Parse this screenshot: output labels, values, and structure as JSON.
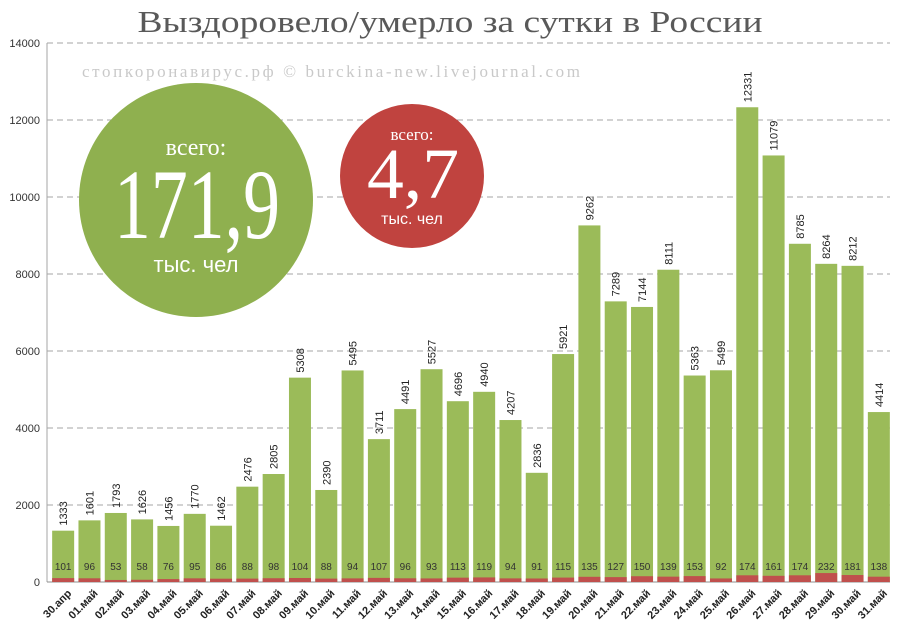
{
  "watermark": "стопкоронавирус.рф © burckina-new.livejournal.com",
  "totals": {
    "recovered": {
      "label": "всего:",
      "value": "171,9",
      "unit": "тыс. чел",
      "color": "#8fb04f"
    },
    "deaths": {
      "label": "всего:",
      "value": "4,7",
      "unit": "тыс. чел",
      "color": "#c0433f"
    }
  },
  "chart_data": {
    "type": "bar",
    "title": "Выздоровело/умерло за сутки в России",
    "categories": [
      "30.апр",
      "01.май",
      "02.май",
      "03.май",
      "04.май",
      "05.май",
      "06.май",
      "07.май",
      "08.май",
      "09.май",
      "10.май",
      "11.май",
      "12.май",
      "13.май",
      "14.май",
      "15.май",
      "16.май",
      "17.май",
      "18.май",
      "19.май",
      "20.май",
      "21.май",
      "22.май",
      "23.май",
      "24.май",
      "25.май",
      "26.май",
      "27.май",
      "28.май",
      "29.май",
      "30.май",
      "31.май"
    ],
    "series": [
      {
        "values": [
          1333,
          1601,
          1793,
          1626,
          1456,
          1770,
          1462,
          2476,
          2805,
          5308,
          2390,
          5495,
          3711,
          4491,
          5527,
          4696,
          4940,
          4207,
          2836,
          5921,
          9262,
          7289,
          7144,
          8111,
          5363,
          5499,
          12331,
          11079,
          8785,
          8264,
          8212,
          4414
        ],
        "color": "#9bbb59"
      },
      {
        "values": [
          101,
          96,
          53,
          58,
          76,
          95,
          86,
          88,
          98,
          104,
          88,
          94,
          107,
          96,
          93,
          113,
          119,
          94,
          91,
          115,
          135,
          127,
          150,
          139,
          153,
          92,
          174,
          161,
          174,
          232,
          181,
          138
        ],
        "color": "#c0504d"
      }
    ],
    "ylim": [
      0,
      14000
    ],
    "yticks": [
      0,
      2000,
      4000,
      6000,
      8000,
      10000,
      12000,
      14000
    ],
    "grid": true,
    "data_labels": true
  }
}
